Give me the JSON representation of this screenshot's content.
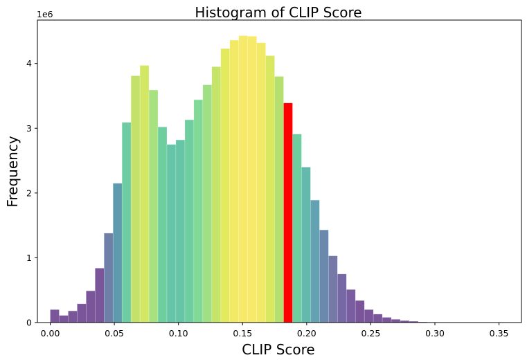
{
  "chart_data": {
    "type": "bar",
    "title": "Histogram of CLIP Score",
    "xlabel": "CLIP Score",
    "ylabel": "Frequency",
    "y_offset_label": "1e6",
    "xlim": [
      -0.01,
      0.3675
    ],
    "ylim": [
      0,
      4.67
    ],
    "grid": false,
    "bin_start": 0.0,
    "bin_width": 0.007,
    "x_ticks": [
      0.0,
      0.05,
      0.1,
      0.15,
      0.2,
      0.25,
      0.3,
      0.35
    ],
    "x_tick_labels": [
      "0.00",
      "0.05",
      "0.10",
      "0.15",
      "0.20",
      "0.25",
      "0.30",
      "0.35"
    ],
    "y_ticks": [
      0,
      1,
      2,
      3,
      4
    ],
    "y_tick_labels": [
      "0",
      "1",
      "2",
      "3",
      "4"
    ],
    "highlight_color": "#ff0000",
    "values": [
      0.2,
      0.11,
      0.18,
      0.29,
      0.49,
      0.84,
      1.38,
      2.15,
      3.09,
      3.81,
      3.97,
      3.59,
      3.02,
      2.75,
      2.82,
      3.13,
      3.44,
      3.67,
      3.95,
      4.23,
      4.36,
      4.43,
      4.42,
      4.32,
      4.12,
      3.8,
      3.39,
      2.91,
      2.4,
      1.89,
      1.43,
      1.03,
      0.75,
      0.51,
      0.34,
      0.2,
      0.13,
      0.08,
      0.05,
      0.03,
      0.02,
      0.01,
      0.006,
      0.004,
      0.003,
      0.002,
      0.001
    ],
    "colors": [
      "#7b559a",
      "#7b559a",
      "#7b559a",
      "#7b559a",
      "#7b559a",
      "#7b559a",
      "#6e7fa8",
      "#5e9aad",
      "#6dcca3",
      "#c4e26a",
      "#d2e764",
      "#a8e180",
      "#6ecea0",
      "#66c5a6",
      "#66c5a6",
      "#6ecea0",
      "#82d896",
      "#a0df84",
      "#c6e36a",
      "#e3ea5e",
      "#f2ea66",
      "#f7ea6a",
      "#f7ea6a",
      "#f2ea66",
      "#d8e860",
      "#b5e070",
      "#ff0000",
      "#6ecea0",
      "#63b9ab",
      "#63a2b2",
      "#6a89ac",
      "#7479a8",
      "#7668a4",
      "#7a5da0",
      "#7b559a",
      "#7b559a",
      "#7b559a",
      "#7b559a",
      "#7b559a",
      "#7b559a",
      "#7b559a",
      "#7b559a",
      "#7b559a",
      "#7b559a",
      "#7b559a",
      "#7b559a",
      "#7b559a"
    ]
  }
}
